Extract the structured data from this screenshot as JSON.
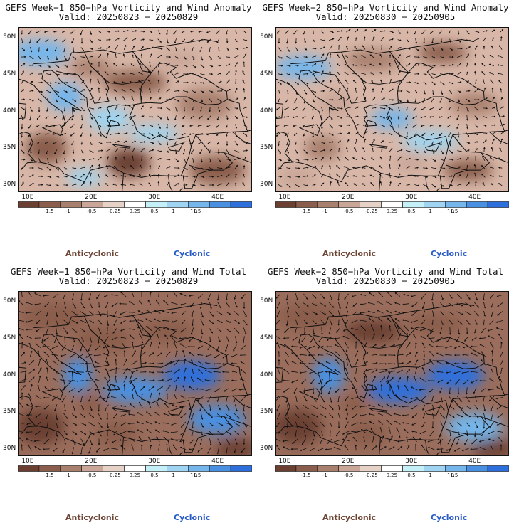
{
  "panels": [
    {
      "title": "GEFS Week−1 850−hPa Vorticity and Wind Anomaly",
      "valid": "Valid: 20250823 − 20250829",
      "variant": 0
    },
    {
      "title": "GEFS Week−2 850−hPa Vorticity and Wind Anomaly",
      "valid": "Valid: 20250830 − 20250905",
      "variant": 1
    },
    {
      "title": "GEFS Week−1 850−hPa Vorticity and Wind Total",
      "valid": "Valid: 20250823 − 20250829",
      "variant": 2
    },
    {
      "title": "GEFS Week−2 850−hPa Vorticity and Wind Total",
      "valid": "Valid: 20250830 − 20250905",
      "variant": 3
    }
  ],
  "lat_labels": [
    "50N",
    "45N",
    "40N",
    "35N",
    "30N"
  ],
  "lon_labels": [
    "10E",
    "20E",
    "30E",
    "40E"
  ],
  "colorbar": {
    "ticks": [
      "-1.5",
      "-1",
      "-0.5",
      "-0.25",
      "0.25",
      "0.5",
      "1",
      "1.5"
    ],
    "vector_ref": "10",
    "colors": [
      "#6b4032",
      "#8a5d4c",
      "#a9806e",
      "#c9a697",
      "#e6d2c7",
      "#ffffff",
      "#c6f0f7",
      "#9fd5f2",
      "#75b6ec",
      "#4a90e2",
      "#2d6fdc"
    ]
  },
  "legend": {
    "anticyclonic": "Anticyclonic",
    "cyclonic": "Cyclonic"
  }
}
